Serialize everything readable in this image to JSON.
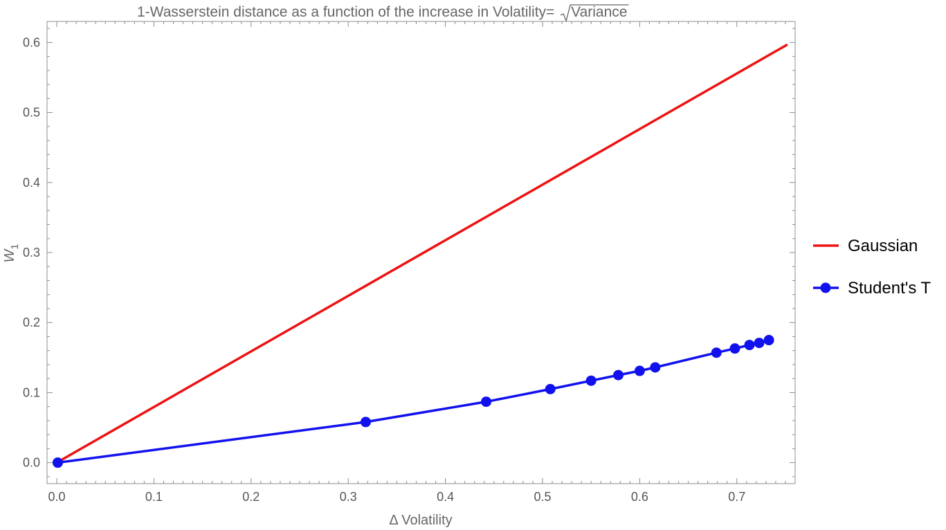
{
  "chart_data": {
    "type": "line",
    "title_prefix": "1-Wasserstein distance as a function of the increase in Volatility= ",
    "title_radicand": "Variance",
    "xlabel": "Δ Volatility",
    "ylabel_main": "W",
    "ylabel_sub": "1",
    "xlim": [
      -0.01,
      0.76
    ],
    "ylim": [
      -0.03,
      0.63
    ],
    "x_ticks": [
      "0.0",
      "0.1",
      "0.2",
      "0.3",
      "0.4",
      "0.5",
      "0.6",
      "0.7"
    ],
    "y_ticks": [
      "0.0",
      "0.1",
      "0.2",
      "0.3",
      "0.4",
      "0.5",
      "0.6"
    ],
    "x_tick_values": [
      0.0,
      0.1,
      0.2,
      0.3,
      0.4,
      0.5,
      0.6,
      0.7
    ],
    "y_tick_values": [
      0.0,
      0.1,
      0.2,
      0.3,
      0.4,
      0.5,
      0.6
    ],
    "legend_position": "right",
    "series": [
      {
        "name": "Gaussian",
        "color": "#ee1111",
        "markers": false,
        "x": [
          0.0,
          0.752
        ],
        "y": [
          0.0,
          0.597
        ]
      },
      {
        "name": "Student's T",
        "color": "#1111ee",
        "markers": true,
        "x": [
          0.001,
          0.318,
          0.442,
          0.508,
          0.55,
          0.578,
          0.6,
          0.616,
          0.679,
          0.698,
          0.713,
          0.723,
          0.733
        ],
        "y": [
          0.0,
          0.058,
          0.087,
          0.105,
          0.117,
          0.125,
          0.131,
          0.136,
          0.157,
          0.163,
          0.168,
          0.171,
          0.175
        ]
      }
    ]
  }
}
